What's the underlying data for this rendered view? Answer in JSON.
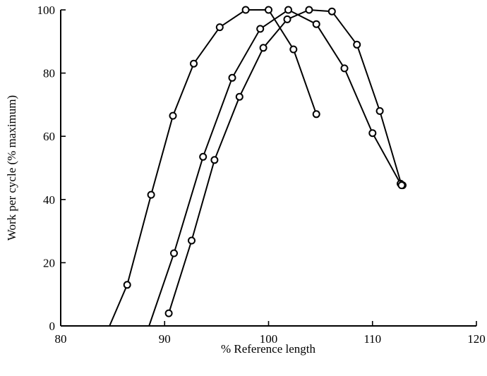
{
  "chart_data": {
    "type": "line",
    "title": "",
    "xlabel": "% Reference length",
    "ylabel": "Work per cycle (% maximum)",
    "xlim": [
      80,
      120
    ],
    "ylim": [
      0,
      100
    ],
    "x_ticks": [
      80,
      90,
      100,
      110,
      120
    ],
    "y_ticks": [
      0,
      20,
      40,
      60,
      80,
      100
    ],
    "grid": false,
    "legend": "none",
    "series": [
      {
        "points": [
          [
            84.7,
            0
          ],
          [
            86.4,
            13
          ],
          [
            88.7,
            41.5
          ],
          [
            90.8,
            66.5
          ],
          [
            92.8,
            83
          ],
          [
            95.3,
            94.5
          ],
          [
            97.8,
            100
          ],
          [
            100.0,
            100
          ],
          [
            102.4,
            87.5
          ],
          [
            104.6,
            67
          ]
        ]
      },
      {
        "points": [
          [
            88.5,
            0
          ],
          [
            90.9,
            23
          ],
          [
            93.7,
            53.5
          ],
          [
            96.5,
            78.5
          ],
          [
            99.2,
            94
          ],
          [
            101.9,
            100
          ],
          [
            104.6,
            95.5
          ],
          [
            107.3,
            81.5
          ],
          [
            110.0,
            61
          ],
          [
            112.7,
            45
          ],
          [
            112.9,
            44.5
          ]
        ]
      },
      {
        "points": [
          [
            90.4,
            4
          ],
          [
            92.6,
            27
          ],
          [
            94.8,
            52.5
          ],
          [
            97.2,
            72.5
          ],
          [
            99.5,
            88
          ],
          [
            101.8,
            97
          ],
          [
            103.9,
            100
          ],
          [
            106.1,
            99.5
          ],
          [
            108.5,
            89
          ],
          [
            110.7,
            68
          ],
          [
            112.8,
            44.5
          ]
        ]
      }
    ]
  }
}
